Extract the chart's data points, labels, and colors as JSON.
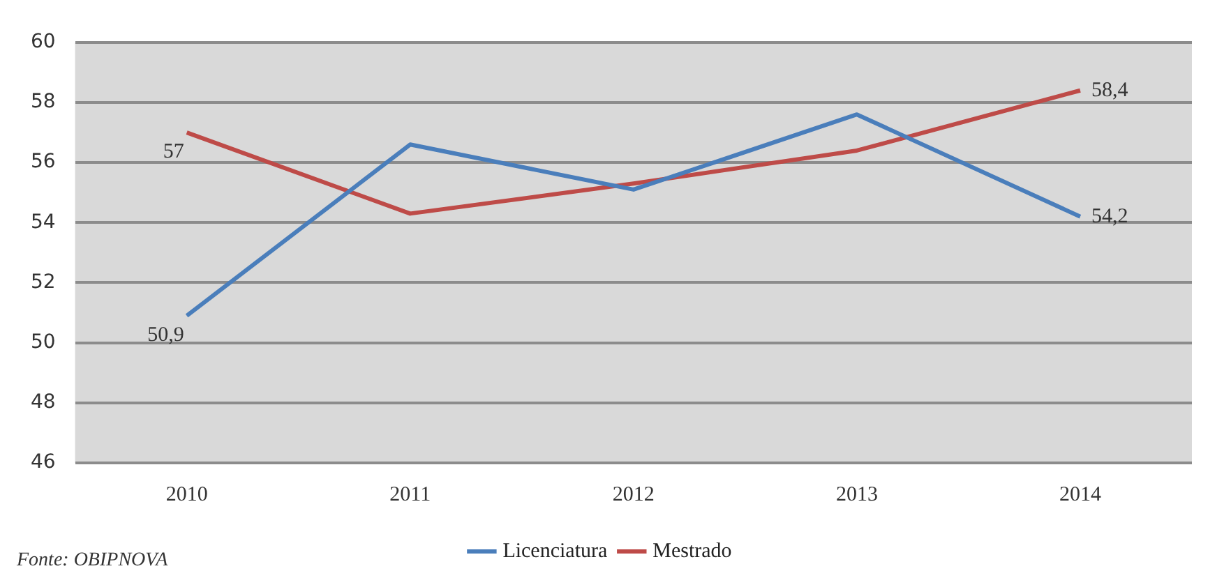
{
  "chart_data": {
    "type": "line",
    "categories": [
      "2010",
      "2011",
      "2012",
      "2013",
      "2014"
    ],
    "series": [
      {
        "name": "Licenciatura",
        "color": "#4a7ebb",
        "values": [
          50.9,
          56.6,
          55.1,
          57.6,
          54.2
        ],
        "value_labels": [
          "50,9",
          null,
          null,
          null,
          "54,2"
        ]
      },
      {
        "name": "Mestrado",
        "color": "#be4b48",
        "values": [
          57,
          54.3,
          55.3,
          56.4,
          58.4
        ],
        "value_labels": [
          "57",
          null,
          null,
          null,
          "58,4"
        ]
      }
    ],
    "ylim": [
      46,
      60
    ],
    "yticks": [
      46,
      48,
      50,
      52,
      54,
      56,
      58,
      60
    ],
    "grid": "y",
    "legend": "bottom",
    "marker": "none",
    "line_style": "solid",
    "annotations": [
      "Fonte: OBIPNOVA"
    ]
  }
}
